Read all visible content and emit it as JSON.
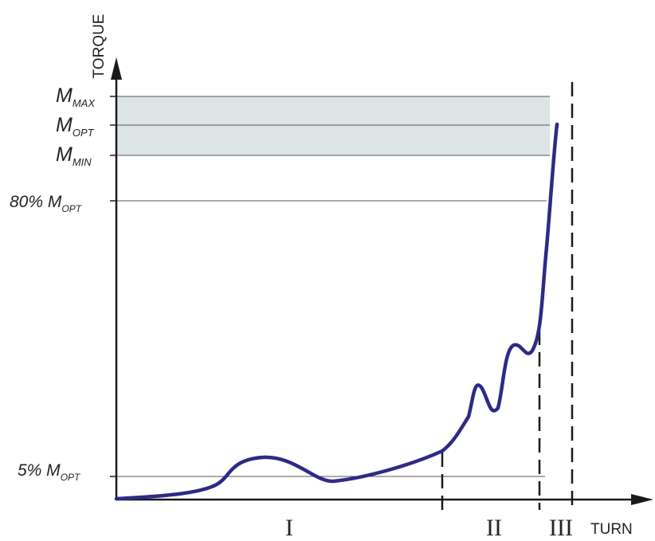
{
  "axes": {
    "y_label": "TORQUE",
    "x_label": "TURN"
  },
  "levels": {
    "max": {
      "main": "M",
      "sub": "MAX"
    },
    "opt": {
      "main": "M",
      "sub": "OPT"
    },
    "min": {
      "main": "M",
      "sub": "MIN"
    },
    "eighty": {
      "main": "80% M",
      "sub": "OPT"
    },
    "five": {
      "main": "5% M",
      "sub": "OPT"
    }
  },
  "zones": [
    "I",
    "II",
    "III"
  ],
  "colors": {
    "curve": "#2e2a86",
    "band": "#dde5e6",
    "axis": "#1a1a1a",
    "gridline": "#555555"
  }
}
